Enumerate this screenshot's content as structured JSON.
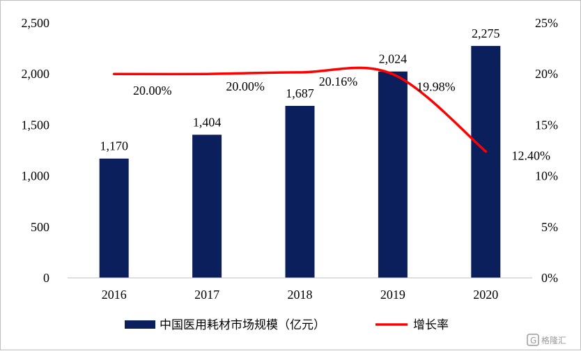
{
  "chart_data": {
    "type": "bar",
    "categories": [
      "2016",
      "2017",
      "2018",
      "2019",
      "2020"
    ],
    "series": [
      {
        "name": "中国医用耗材市场规模（亿元）",
        "type": "bar",
        "axis": "left",
        "values": [
          1170,
          1404,
          1687,
          2024,
          2275
        ],
        "labels": [
          "1,170",
          "1,404",
          "1,687",
          "2,024",
          "2,275"
        ],
        "color": "#0b1f5c"
      },
      {
        "name": "增长率",
        "type": "line",
        "axis": "right",
        "values": [
          20.0,
          20.0,
          20.16,
          19.98,
          12.4
        ],
        "labels": [
          "20.00%",
          "20.00%",
          "20.16%",
          "19.98%",
          "12.40%"
        ],
        "color": "#ff0000"
      }
    ],
    "y_left": {
      "range": [
        0,
        2500
      ],
      "ticks": [
        0,
        500,
        1000,
        1500,
        2000,
        2500
      ],
      "tick_labels": [
        "0",
        "500",
        "1,000",
        "1,500",
        "2,000",
        "2,500"
      ]
    },
    "y_right": {
      "range": [
        0,
        25
      ],
      "ticks": [
        0,
        5,
        10,
        15,
        20,
        25
      ],
      "tick_labels": [
        "0%",
        "5%",
        "10%",
        "15%",
        "20%",
        "25%"
      ]
    },
    "grid": false,
    "legend_position": "bottom"
  },
  "watermark": {
    "text": "格隆汇",
    "icon": "g-logo-icon"
  }
}
